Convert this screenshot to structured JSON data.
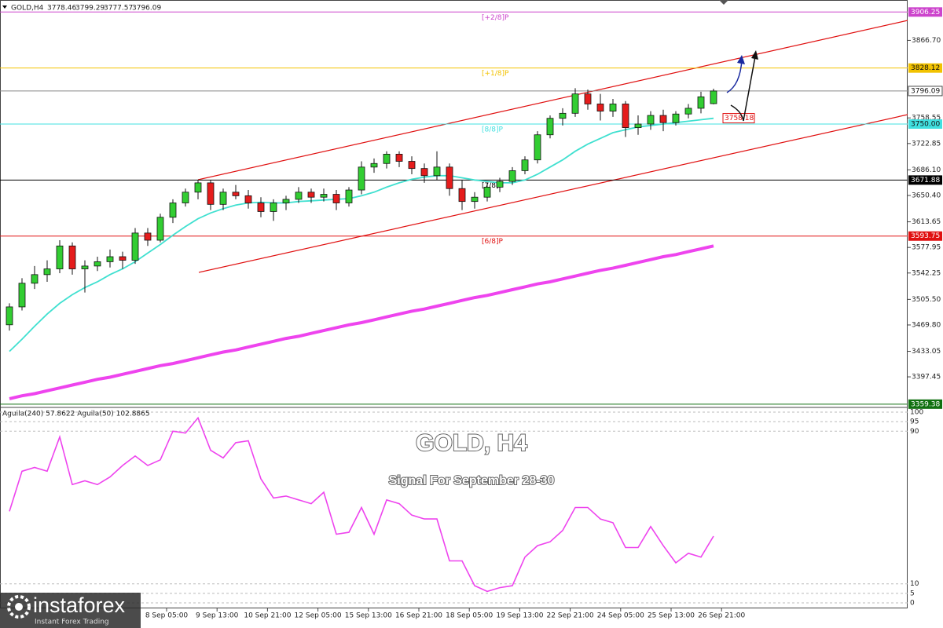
{
  "chart_data": {
    "type": "candlestick",
    "symbol": "GOLD,H4",
    "title": "GOLD, H4",
    "subtitle": "Signal For September 28-30",
    "x_labels": [
      "8 Sep 05:00",
      "9 Sep 13:00",
      "10 Sep 21:00",
      "12 Sep 05:00",
      "15 Sep 13:00",
      "16 Sep 21:00",
      "18 Sep 05:00",
      "19 Sep 13:00",
      "22 Sep 21:00",
      "24 Sep 05:00",
      "25 Sep 13:00",
      "26 Sep 21:00"
    ],
    "up_color": "#32cd32",
    "down_color": "#e51c1c",
    "candles": {
      "open": [
        3470,
        3495,
        3528,
        3540,
        3548,
        3580,
        3548,
        3552,
        3558,
        3565,
        3560,
        3598,
        3588,
        3620,
        3640,
        3655,
        3668,
        3638,
        3655,
        3650,
        3640,
        3628,
        3640,
        3645,
        3655,
        3648,
        3652,
        3640,
        3658,
        3690,
        3695,
        3708,
        3698,
        3688,
        3678,
        3690,
        3660,
        3642,
        3648,
        3662,
        3670,
        3685,
        3700,
        3735,
        3758,
        3765,
        3792,
        3778,
        3768,
        3778,
        3745,
        3750,
        3762,
        3752,
        3764,
        3772,
        3778.46
      ],
      "high": [
        3500,
        3535,
        3552,
        3560,
        3588,
        3585,
        3560,
        3565,
        3575,
        3572,
        3605,
        3605,
        3625,
        3645,
        3660,
        3672,
        3672,
        3660,
        3665,
        3658,
        3648,
        3645,
        3650,
        3662,
        3660,
        3660,
        3658,
        3662,
        3698,
        3702,
        3712,
        3712,
        3705,
        3695,
        3712,
        3695,
        3672,
        3655,
        3668,
        3675,
        3690,
        3705,
        3740,
        3762,
        3772,
        3800,
        3798,
        3792,
        3785,
        3782,
        3762,
        3768,
        3770,
        3768,
        3778,
        3795,
        3799.29
      ],
      "low": [
        3462,
        3490,
        3520,
        3530,
        3542,
        3540,
        3515,
        3545,
        3550,
        3548,
        3555,
        3580,
        3585,
        3612,
        3635,
        3645,
        3630,
        3630,
        3645,
        3632,
        3620,
        3615,
        3630,
        3640,
        3640,
        3642,
        3630,
        3635,
        3652,
        3682,
        3688,
        3690,
        3680,
        3668,
        3672,
        3650,
        3630,
        3632,
        3642,
        3655,
        3665,
        3680,
        3695,
        3730,
        3748,
        3760,
        3770,
        3755,
        3760,
        3732,
        3735,
        3742,
        3740,
        3748,
        3758,
        3765,
        3777.57
      ],
      "close": [
        3495,
        3528,
        3540,
        3548,
        3580,
        3548,
        3552,
        3558,
        3565,
        3560,
        3598,
        3588,
        3620,
        3640,
        3655,
        3668,
        3638,
        3655,
        3650,
        3640,
        3628,
        3640,
        3645,
        3655,
        3648,
        3652,
        3640,
        3658,
        3690,
        3695,
        3708,
        3698,
        3688,
        3678,
        3690,
        3660,
        3642,
        3648,
        3662,
        3670,
        3685,
        3700,
        3735,
        3758,
        3765,
        3792,
        3778,
        3768,
        3778,
        3745,
        3750,
        3762,
        3752,
        3764,
        3772,
        3788,
        3796.09
      ]
    },
    "moving_averages": [
      {
        "color": "#40e0d0",
        "values": [
          3433,
          3450,
          3468,
          3485,
          3500,
          3512,
          3522,
          3530,
          3540,
          3548,
          3558,
          3570,
          3582,
          3595,
          3607,
          3618,
          3626,
          3632,
          3637,
          3640,
          3641,
          3640,
          3640,
          3642,
          3643,
          3644,
          3645,
          3646,
          3650,
          3655,
          3662,
          3668,
          3673,
          3676,
          3678,
          3678,
          3675,
          3672,
          3670,
          3668,
          3668,
          3672,
          3680,
          3690,
          3700,
          3712,
          3722,
          3730,
          3738,
          3742,
          3746,
          3748,
          3750,
          3752,
          3754,
          3756,
          3758
        ]
      },
      {
        "color": "#ee44ee",
        "values": [
          3367,
          3371,
          3374,
          3378,
          3382,
          3386,
          3390,
          3394,
          3397,
          3401,
          3405,
          3409,
          3413,
          3416,
          3420,
          3424,
          3428,
          3432,
          3435,
          3439,
          3443,
          3447,
          3451,
          3454,
          3458,
          3462,
          3466,
          3470,
          3473,
          3477,
          3481,
          3485,
          3489,
          3492,
          3496,
          3500,
          3504,
          3508,
          3511,
          3515,
          3519,
          3523,
          3527,
          3530,
          3534,
          3538,
          3542,
          3546,
          3549,
          3553,
          3557,
          3561,
          3565,
          3568,
          3572,
          3576,
          3580
        ]
      }
    ],
    "ylim": [
      3357,
      3923
    ],
    "yticks": [
      {
        "value": 3866.7,
        "label": "3866.70"
      },
      3758.55,
      3722.85,
      {
        "value": 3686.1,
        "label": "3686.10"
      },
      {
        "value": 3650.4,
        "label": "3650.40"
      },
      3613.65,
      3577.95,
      3542.25,
      {
        "value": 3505.5,
        "label": "3505.50"
      },
      {
        "value": 3469.8,
        "label": "3469.80"
      },
      3433.05,
      3397.45
    ],
    "levels": [
      {
        "label": "[+2/8]P",
        "value": 3906.25,
        "color": "#cc44cc"
      },
      {
        "label": "[+1/8]P",
        "value": 3828.12,
        "color": "#f2c200"
      },
      {
        "value": 3796.09,
        "color": "#888888"
      },
      {
        "label": "[8/8]P",
        "value": 3750,
        "value_label": "3750.00",
        "color": "#40e0e0"
      },
      {
        "label": "[7/8]P",
        "value": 3671.88,
        "color": "#000000"
      },
      {
        "label": "[6/8]P",
        "value": 3593.75,
        "color": "#e01010"
      },
      {
        "value": 3359.38,
        "color": "#107010"
      }
    ],
    "annotation": {
      "value": 3758.18
    },
    "indicator": {
      "label": "Aguila(240) 57.8622 Aguila(50) 102.8865",
      "color": "#ee44ee",
      "ylim": [
        0,
        100
      ],
      "yticks": [
        100,
        95,
        90,
        10,
        5,
        0
      ],
      "values": [
        48,
        69,
        71,
        69,
        87,
        62,
        64,
        62,
        66,
        72,
        77,
        72,
        75,
        90,
        89,
        97,
        80,
        76,
        84,
        85,
        65,
        55,
        56,
        54,
        52,
        58,
        36,
        37,
        50,
        36,
        54,
        52,
        46,
        44,
        44,
        22,
        22,
        9,
        6,
        8,
        9,
        24,
        30,
        32,
        38,
        50,
        50,
        44,
        42,
        29,
        29,
        40,
        30,
        21,
        26,
        24,
        35
      ]
    },
    "watermark": {
      "brand": "instaforex",
      "tagline": "Instant Forex Trading"
    }
  }
}
